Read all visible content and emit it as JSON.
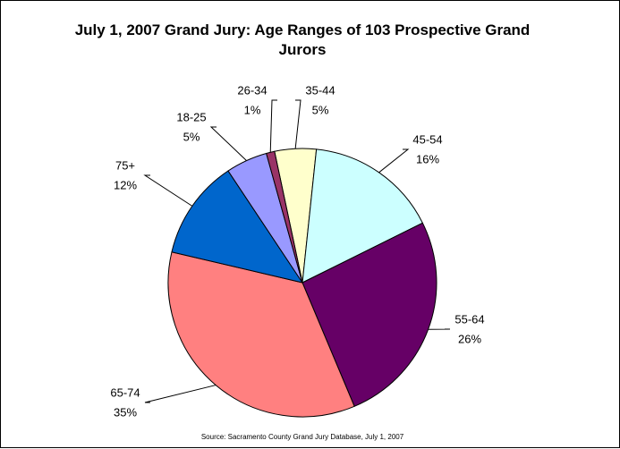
{
  "chart_data": {
    "type": "pie",
    "title": "July 1, 2007 Grand Jury: Age Ranges of 103 Prospective Grand Jurors",
    "source": "Source: Sacramento County Grand Jury Database, July 1, 2007",
    "categories": [
      "35-44",
      "45-54",
      "55-64",
      "65-74",
      "75+",
      "18-25",
      "26-34"
    ],
    "values": [
      5,
      16,
      26,
      35,
      12,
      5,
      1
    ],
    "value_labels": [
      "5%",
      "16%",
      "26%",
      "35%",
      "12%",
      "5%",
      "1%"
    ],
    "colors": [
      "#ffffcc",
      "#ccffff",
      "#660066",
      "#ff8080",
      "#0066cc",
      "#9999ff",
      "#993366"
    ]
  }
}
